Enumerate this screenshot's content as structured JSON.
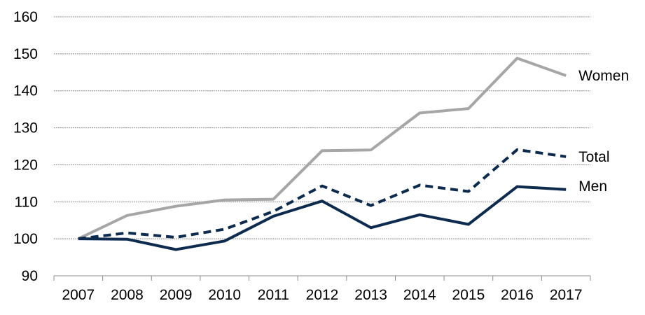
{
  "chart_data": {
    "type": "line",
    "x": [
      2007,
      2008,
      2009,
      2010,
      2011,
      2012,
      2013,
      2014,
      2015,
      2016,
      2017
    ],
    "ylim": [
      90,
      160
    ],
    "yticks": [
      90,
      100,
      110,
      120,
      130,
      140,
      150,
      160
    ],
    "grid": true,
    "series": [
      {
        "name": "Women",
        "values": [
          100,
          106.3,
          108.8,
          110.5,
          110.7,
          123.8,
          124.0,
          134.0,
          135.2,
          148.8,
          144.1
        ],
        "color": "#a6a6a6",
        "style": "solid"
      },
      {
        "name": "Total",
        "values": [
          100,
          101.6,
          100.4,
          102.6,
          107.4,
          114.3,
          109.0,
          114.5,
          112.8,
          124.1,
          122.2
        ],
        "color": "#0d2b4e",
        "style": "dashed"
      },
      {
        "name": "Men",
        "values": [
          100,
          99.9,
          97.1,
          99.4,
          106.1,
          110.2,
          103.0,
          106.5,
          103.9,
          114.1,
          113.3
        ],
        "color": "#0d2b4e",
        "style": "solid"
      }
    ]
  }
}
